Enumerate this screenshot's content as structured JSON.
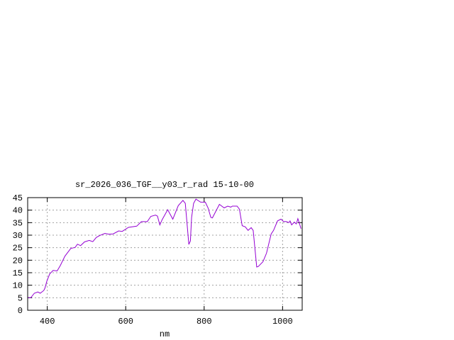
{
  "chart_data": {
    "type": "line",
    "title": "sr_2026_036_TGF__y03_r_rad 15-10-00",
    "xlabel": "nm",
    "ylabel": "",
    "xlim": [
      350,
      1050
    ],
    "ylim": [
      0,
      45
    ],
    "xticks": [
      400,
      600,
      800,
      1000
    ],
    "yticks": [
      0,
      5,
      10,
      15,
      20,
      25,
      30,
      35,
      40,
      45
    ],
    "grid": true,
    "legend": "none",
    "series": [
      {
        "color": "#9400d3",
        "x": [
          350,
          358,
          367,
          376,
          382,
          391,
          394,
          399,
          406,
          415,
          425,
          433,
          445,
          460,
          471,
          477,
          485,
          495,
          507,
          516,
          525,
          534,
          547,
          557,
          568,
          582,
          591,
          607,
          628,
          640,
          655,
          664,
          676,
          681,
          687,
          693,
          707,
          720,
          734,
          746,
          752,
          756,
          761,
          765,
          768,
          773,
          779,
          791,
          803,
          810,
          817,
          821,
          839,
          851,
          860,
          868,
          872,
          884,
          890,
          897,
          905,
          912,
          920,
          925,
          934,
          938,
          950,
          959,
          971,
          977,
          987,
          996,
          1002,
          1010,
          1016,
          1019,
          1023,
          1030,
          1035,
          1039,
          1043,
          1047
        ],
        "y": [
          5.0,
          5.0,
          6.8,
          7.3,
          6.8,
          7.9,
          8.8,
          11.7,
          14.5,
          15.9,
          15.7,
          17.8,
          21.6,
          24.7,
          25.1,
          26.4,
          25.8,
          27.3,
          27.9,
          27.4,
          29.1,
          29.9,
          30.7,
          30.4,
          30.5,
          31.7,
          31.5,
          33.1,
          33.6,
          35.4,
          35.4,
          37.5,
          38.0,
          37.6,
          34.1,
          36.2,
          40.2,
          36.4,
          41.8,
          43.9,
          42.7,
          35.2,
          26.3,
          27.7,
          37.1,
          42.7,
          44.4,
          43.2,
          43.2,
          40.9,
          37.1,
          36.9,
          42.3,
          40.9,
          41.6,
          41.2,
          41.6,
          41.6,
          40.4,
          33.8,
          33.3,
          31.9,
          33.0,
          31.9,
          17.3,
          17.5,
          19.4,
          22.8,
          30.5,
          31.9,
          35.7,
          36.4,
          35.5,
          35.4,
          35.0,
          35.7,
          34.1,
          35.2,
          34.5,
          36.6,
          34.7,
          32.6
        ]
      }
    ]
  }
}
